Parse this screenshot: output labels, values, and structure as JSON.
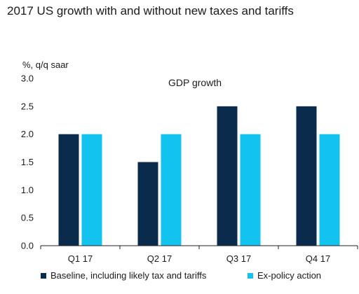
{
  "title": "2017 US growth with and without new taxes and tariffs",
  "chart_data": {
    "type": "bar",
    "title": "GDP growth",
    "ylabel": "%, q/q saar",
    "xlabel": "",
    "categories": [
      "Q1 17",
      "Q2 17",
      "Q3 17",
      "Q4 17"
    ],
    "series": [
      {
        "name": "Baseline, including likely tax and tariffs",
        "values": [
          2.0,
          1.5,
          2.5,
          2.5
        ],
        "color": "#0b2b4c"
      },
      {
        "name": "Ex-policy action",
        "values": [
          2.0,
          2.0,
          2.0,
          2.0
        ],
        "color": "#12c3f0"
      }
    ],
    "ylim": [
      0,
      3.0
    ],
    "yticks": [
      "0.0",
      "0.5",
      "1.0",
      "1.5",
      "2.0",
      "2.5",
      "3.0"
    ],
    "grid": false,
    "legend_position": "bottom"
  }
}
